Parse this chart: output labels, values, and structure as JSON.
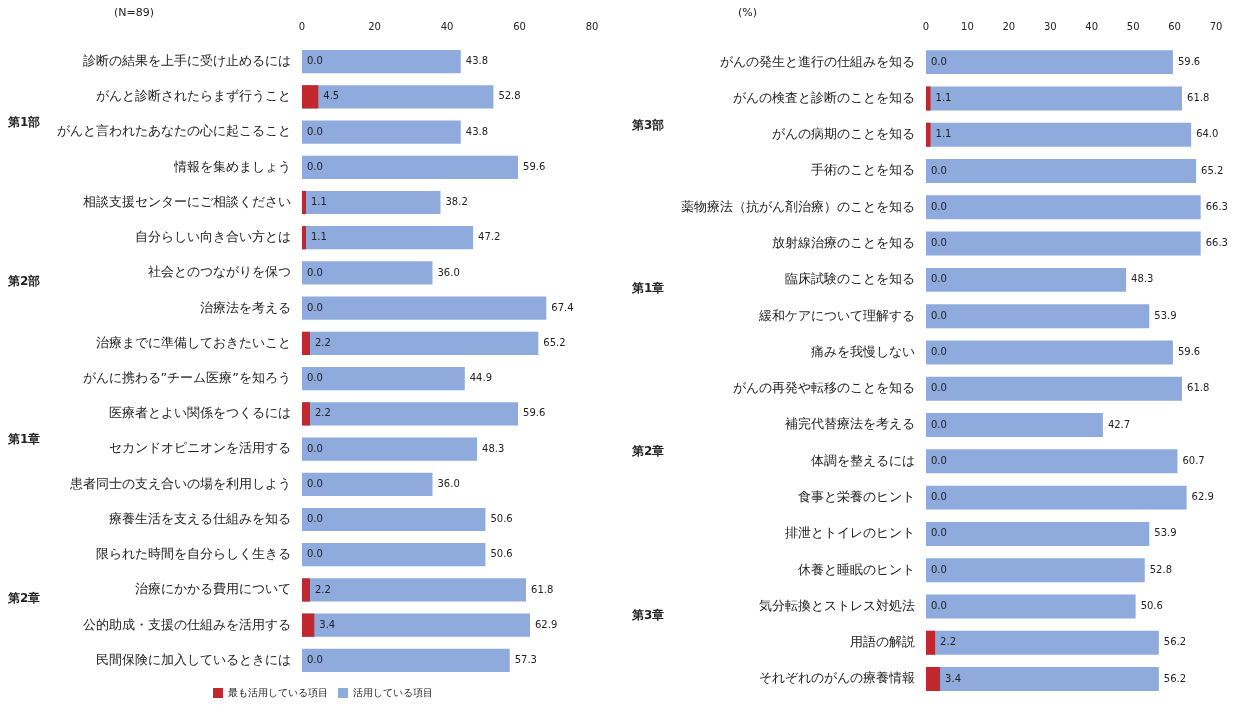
{
  "chart_data": [
    {
      "type": "bar",
      "orientation": "horizontal",
      "legend": "bottom",
      "grid": false,
      "categories": [
        "診断の結果を上手に受け止めるには",
        "がんと診断されたらまず行うこと",
        "がんと言われたあなたの心に起こること",
        "情報を集めましょう",
        "相談支援センターにご相談ください",
        "自分らしい向き合い方とは",
        "社会とのつながりを保つ",
        "治療法を考える",
        "治療までに準備しておきたいこと",
        "がんに携わる”チーム医療”を知ろう",
        "医療者とよい関係をつくるには",
        "セカンドオピニオンを活用する",
        "患者同士の支え合いの場を利用しよう",
        "療養生活を支える仕組みを知る",
        "限られた時間を自分らしく生きる",
        "治療にかかる費用について",
        "公的助成・支援の仕組みを活用する",
        "民間保険に加入しているときには"
      ],
      "series": [
        {
          "name": "活用している項目",
          "color": "#8faadc",
          "values": [
            43.8,
            52.8,
            43.8,
            59.6,
            38.2,
            47.2,
            36.0,
            67.4,
            65.2,
            44.9,
            59.6,
            48.3,
            36.0,
            50.6,
            50.6,
            61.8,
            62.9,
            57.3
          ],
          "value_labels": [
            "43.8",
            "52.8",
            "43.8",
            "59.6",
            "38.2",
            "47.2",
            "36.0",
            "67.4",
            "65.2",
            "44.9",
            "59.6",
            "48.3",
            "36.0",
            "50.6",
            "50.6",
            "61.8",
            "62.9",
            "57.3"
          ]
        },
        {
          "name": "最も活用している項目",
          "color": "#c0282d",
          "values": [
            0,
            4.5,
            0,
            0,
            1.1,
            1.1,
            0,
            0,
            2.2,
            0,
            2.2,
            0,
            0,
            0,
            0,
            2.2,
            3.4,
            0
          ],
          "value_labels": [
            "0.0",
            "4.5",
            "0.0",
            "0.0",
            "1.1",
            "1.1",
            "0.0",
            "0.0",
            "2.2",
            "0.0",
            "2.2",
            "0.0",
            "0.0",
            "0.0",
            "0.0",
            "2.2",
            "3.4",
            "0.0"
          ]
        }
      ],
      "xlim": [
        0,
        80
      ],
      "xticks": [
        0,
        20,
        40,
        60,
        80
      ],
      "annotations": [
        "(N=89)",
        "第1部",
        "第2部",
        "第1章",
        "第2章"
      ]
    },
    {
      "type": "bar",
      "orientation": "horizontal",
      "grid": false,
      "categories": [
        "がんの発生と進行の仕組みを知る",
        "がんの検査と診断のことを知る",
        "がんの病期のことを知る",
        "手術のことを知る",
        "薬物療法（抗がん剤治療）のことを知る",
        "放射線治療のことを知る",
        "臨床試験のことを知る",
        "緩和ケアについて理解する",
        "痛みを我慢しない",
        "がんの再発や転移のことを知る",
        "補完代替療法を考える",
        "体調を整えるには",
        "食事と栄養のヒント",
        "排泄とトイレのヒント",
        "休養と睡眠のヒント",
        "気分転換とストレス対処法",
        "用語の解説",
        "それぞれのがんの療養情報"
      ],
      "series": [
        {
          "color": "#8faadc",
          "values": [
            59.6,
            61.8,
            64.0,
            65.2,
            66.3,
            66.3,
            48.3,
            53.9,
            59.6,
            61.8,
            42.7,
            60.7,
            62.9,
            53.9,
            52.8,
            50.6,
            56.2,
            56.2
          ],
          "value_labels": [
            "59.6",
            "61.8",
            "64.0",
            "65.2",
            "66.3",
            "66.3",
            "48.3",
            "53.9",
            "59.6",
            "61.8",
            "42.7",
            "60.7",
            "62.9",
            "53.9",
            "52.8",
            "50.6",
            "56.2",
            "56.2"
          ]
        },
        {
          "color": "#c0282d",
          "values": [
            0,
            1.1,
            1.1,
            0,
            0,
            0,
            0,
            0,
            0,
            0,
            0,
            0,
            0,
            0,
            0,
            0,
            2.2,
            3.4
          ],
          "value_labels": [
            "0.0",
            "1.1",
            "1.1",
            "0.0",
            "0.0",
            "0.0",
            "0.0",
            "0.0",
            "0.0",
            "0.0",
            "0.0",
            "0.0",
            "0.0",
            "0.0",
            "0.0",
            "0.0",
            "2.2",
            "3.4"
          ]
        }
      ],
      "xlim": [
        0,
        70
      ],
      "xticks": [
        0,
        10,
        20,
        30,
        40,
        50,
        60,
        70
      ],
      "annotations": [
        "(%)",
        "第3部",
        "第1章",
        "第2章",
        "第3章"
      ]
    }
  ]
}
